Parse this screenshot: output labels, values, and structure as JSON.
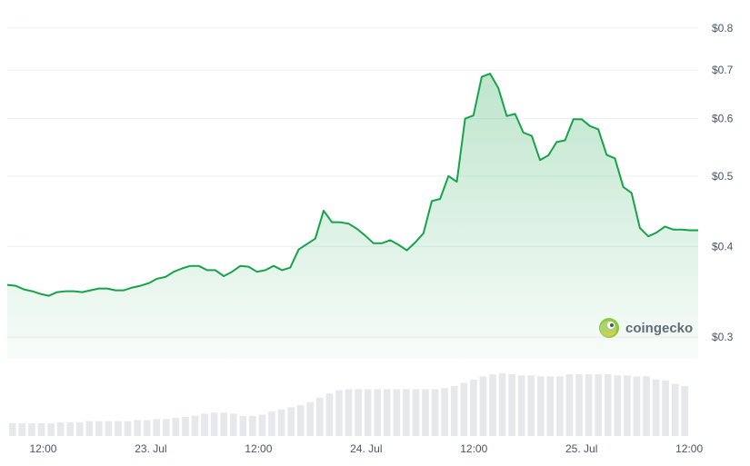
{
  "chart_data": {
    "type": "area",
    "yscale": "log",
    "ylim": [
      0.28,
      0.83
    ],
    "y_ticks": [
      {
        "value": 0.8,
        "label": "$0.8"
      },
      {
        "value": 0.7,
        "label": "$0.7"
      },
      {
        "value": 0.6,
        "label": "$0.6"
      },
      {
        "value": 0.5,
        "label": "$0.5"
      },
      {
        "value": 0.4,
        "label": "$0.4"
      },
      {
        "value": 0.3,
        "label": "$0.3"
      }
    ],
    "x_ticks": [
      {
        "x": 3.5,
        "label": "12:00"
      },
      {
        "x": 15.5,
        "label": "23. Jul"
      },
      {
        "x": 27.5,
        "label": "12:00"
      },
      {
        "x": 39.5,
        "label": "24. Jul"
      },
      {
        "x": 51.5,
        "label": "12:00"
      },
      {
        "x": 63.5,
        "label": "25. Jul"
      },
      {
        "x": 75.5,
        "label": "12:00"
      }
    ],
    "x_range": [
      -0.5,
      76.5
    ],
    "price_color": "#16a34a",
    "volume_color": "#e6e8ec",
    "series": [
      {
        "values": [
          0.354,
          0.353,
          0.349,
          0.347,
          0.344,
          0.342,
          0.346,
          0.347,
          0.347,
          0.346,
          0.348,
          0.35,
          0.35,
          0.348,
          0.348,
          0.351,
          0.353,
          0.356,
          0.361,
          0.363,
          0.369,
          0.373,
          0.376,
          0.376,
          0.371,
          0.371,
          0.364,
          0.369,
          0.376,
          0.375,
          0.369,
          0.371,
          0.376,
          0.371,
          0.374,
          0.396,
          0.403,
          0.41,
          0.448,
          0.432,
          0.432,
          0.43,
          0.423,
          0.414,
          0.404,
          0.404,
          0.408,
          0.402,
          0.395,
          0.405,
          0.417,
          0.462,
          0.465,
          0.5,
          0.491,
          0.6,
          0.606,
          0.685,
          0.692,
          0.661,
          0.605,
          0.609,
          0.574,
          0.568,
          0.526,
          0.534,
          0.557,
          0.56,
          0.599,
          0.599,
          0.586,
          0.58,
          0.535,
          0.529,
          0.483,
          0.474,
          0.424,
          0.413,
          0.418,
          0.426,
          0.422,
          0.422,
          0.421,
          0.421
        ]
      },
      {
        "name": "volume",
        "values": [
          12,
          12,
          12,
          12,
          12,
          13,
          13,
          13,
          14,
          14,
          14,
          14,
          14,
          15,
          15,
          16,
          16,
          17,
          18,
          19,
          21,
          22,
          22,
          21,
          19,
          19,
          20,
          23,
          25,
          27,
          29,
          32,
          36,
          40,
          43,
          44,
          44,
          44,
          44,
          44,
          44,
          44,
          44,
          44,
          44,
          45,
          47,
          50,
          53,
          56,
          58,
          59,
          58,
          57,
          57,
          56,
          56,
          56,
          58,
          58,
          58,
          58,
          58,
          57,
          57,
          56,
          56,
          53,
          52,
          49,
          47
        ]
      }
    ]
  },
  "watermark": {
    "text": "coingecko"
  }
}
